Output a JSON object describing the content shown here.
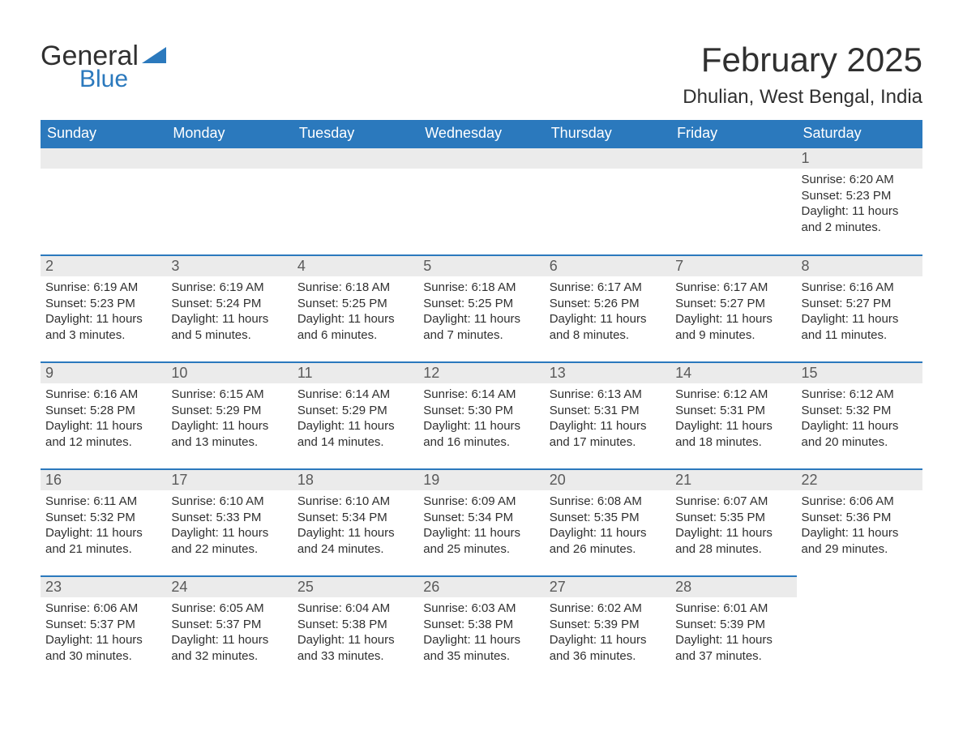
{
  "brand": {
    "word1": "General",
    "word2": "Blue",
    "triangle_color": "#2b79bd"
  },
  "title": "February 2025",
  "location": "Dhulian, West Bengal, India",
  "header_bg": "#2b79bd",
  "header_text_color": "#ffffff",
  "daynum_bg": "#ebebeb",
  "row_divider_color": "#2b79bd",
  "body_text_color": "#303030",
  "day_names": [
    "Sunday",
    "Monday",
    "Tuesday",
    "Wednesday",
    "Thursday",
    "Friday",
    "Saturday"
  ],
  "weeks": [
    [
      null,
      null,
      null,
      null,
      null,
      null,
      {
        "n": "1",
        "sunrise": "Sunrise: 6:20 AM",
        "sunset": "Sunset: 5:23 PM",
        "daylight": "Daylight: 11 hours and 2 minutes."
      }
    ],
    [
      {
        "n": "2",
        "sunrise": "Sunrise: 6:19 AM",
        "sunset": "Sunset: 5:23 PM",
        "daylight": "Daylight: 11 hours and 3 minutes."
      },
      {
        "n": "3",
        "sunrise": "Sunrise: 6:19 AM",
        "sunset": "Sunset: 5:24 PM",
        "daylight": "Daylight: 11 hours and 5 minutes."
      },
      {
        "n": "4",
        "sunrise": "Sunrise: 6:18 AM",
        "sunset": "Sunset: 5:25 PM",
        "daylight": "Daylight: 11 hours and 6 minutes."
      },
      {
        "n": "5",
        "sunrise": "Sunrise: 6:18 AM",
        "sunset": "Sunset: 5:25 PM",
        "daylight": "Daylight: 11 hours and 7 minutes."
      },
      {
        "n": "6",
        "sunrise": "Sunrise: 6:17 AM",
        "sunset": "Sunset: 5:26 PM",
        "daylight": "Daylight: 11 hours and 8 minutes."
      },
      {
        "n": "7",
        "sunrise": "Sunrise: 6:17 AM",
        "sunset": "Sunset: 5:27 PM",
        "daylight": "Daylight: 11 hours and 9 minutes."
      },
      {
        "n": "8",
        "sunrise": "Sunrise: 6:16 AM",
        "sunset": "Sunset: 5:27 PM",
        "daylight": "Daylight: 11 hours and 11 minutes."
      }
    ],
    [
      {
        "n": "9",
        "sunrise": "Sunrise: 6:16 AM",
        "sunset": "Sunset: 5:28 PM",
        "daylight": "Daylight: 11 hours and 12 minutes."
      },
      {
        "n": "10",
        "sunrise": "Sunrise: 6:15 AM",
        "sunset": "Sunset: 5:29 PM",
        "daylight": "Daylight: 11 hours and 13 minutes."
      },
      {
        "n": "11",
        "sunrise": "Sunrise: 6:14 AM",
        "sunset": "Sunset: 5:29 PM",
        "daylight": "Daylight: 11 hours and 14 minutes."
      },
      {
        "n": "12",
        "sunrise": "Sunrise: 6:14 AM",
        "sunset": "Sunset: 5:30 PM",
        "daylight": "Daylight: 11 hours and 16 minutes."
      },
      {
        "n": "13",
        "sunrise": "Sunrise: 6:13 AM",
        "sunset": "Sunset: 5:31 PM",
        "daylight": "Daylight: 11 hours and 17 minutes."
      },
      {
        "n": "14",
        "sunrise": "Sunrise: 6:12 AM",
        "sunset": "Sunset: 5:31 PM",
        "daylight": "Daylight: 11 hours and 18 minutes."
      },
      {
        "n": "15",
        "sunrise": "Sunrise: 6:12 AM",
        "sunset": "Sunset: 5:32 PM",
        "daylight": "Daylight: 11 hours and 20 minutes."
      }
    ],
    [
      {
        "n": "16",
        "sunrise": "Sunrise: 6:11 AM",
        "sunset": "Sunset: 5:32 PM",
        "daylight": "Daylight: 11 hours and 21 minutes."
      },
      {
        "n": "17",
        "sunrise": "Sunrise: 6:10 AM",
        "sunset": "Sunset: 5:33 PM",
        "daylight": "Daylight: 11 hours and 22 minutes."
      },
      {
        "n": "18",
        "sunrise": "Sunrise: 6:10 AM",
        "sunset": "Sunset: 5:34 PM",
        "daylight": "Daylight: 11 hours and 24 minutes."
      },
      {
        "n": "19",
        "sunrise": "Sunrise: 6:09 AM",
        "sunset": "Sunset: 5:34 PM",
        "daylight": "Daylight: 11 hours and 25 minutes."
      },
      {
        "n": "20",
        "sunrise": "Sunrise: 6:08 AM",
        "sunset": "Sunset: 5:35 PM",
        "daylight": "Daylight: 11 hours and 26 minutes."
      },
      {
        "n": "21",
        "sunrise": "Sunrise: 6:07 AM",
        "sunset": "Sunset: 5:35 PM",
        "daylight": "Daylight: 11 hours and 28 minutes."
      },
      {
        "n": "22",
        "sunrise": "Sunrise: 6:06 AM",
        "sunset": "Sunset: 5:36 PM",
        "daylight": "Daylight: 11 hours and 29 minutes."
      }
    ],
    [
      {
        "n": "23",
        "sunrise": "Sunrise: 6:06 AM",
        "sunset": "Sunset: 5:37 PM",
        "daylight": "Daylight: 11 hours and 30 minutes."
      },
      {
        "n": "24",
        "sunrise": "Sunrise: 6:05 AM",
        "sunset": "Sunset: 5:37 PM",
        "daylight": "Daylight: 11 hours and 32 minutes."
      },
      {
        "n": "25",
        "sunrise": "Sunrise: 6:04 AM",
        "sunset": "Sunset: 5:38 PM",
        "daylight": "Daylight: 11 hours and 33 minutes."
      },
      {
        "n": "26",
        "sunrise": "Sunrise: 6:03 AM",
        "sunset": "Sunset: 5:38 PM",
        "daylight": "Daylight: 11 hours and 35 minutes."
      },
      {
        "n": "27",
        "sunrise": "Sunrise: 6:02 AM",
        "sunset": "Sunset: 5:39 PM",
        "daylight": "Daylight: 11 hours and 36 minutes."
      },
      {
        "n": "28",
        "sunrise": "Sunrise: 6:01 AM",
        "sunset": "Sunset: 5:39 PM",
        "daylight": "Daylight: 11 hours and 37 minutes."
      },
      null
    ]
  ]
}
